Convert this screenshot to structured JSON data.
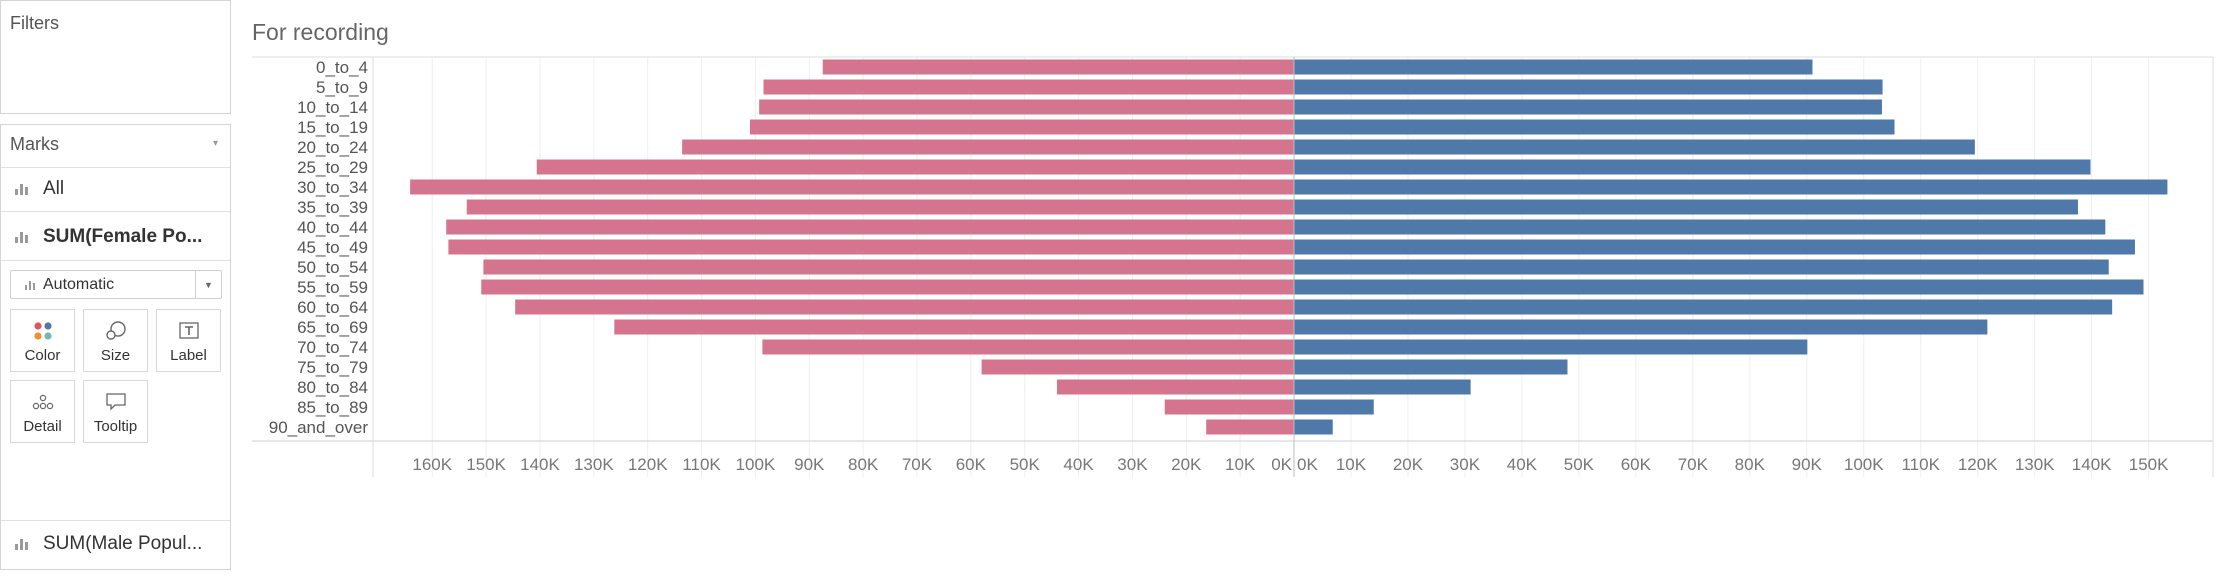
{
  "filters": {
    "title": "Filters"
  },
  "marks": {
    "title": "Marks",
    "rows": [
      {
        "label": "All"
      },
      {
        "label": "SUM(Female Po..."
      },
      {
        "label": "SUM(Male Popul..."
      }
    ],
    "mark_type": "Automatic",
    "shelves": [
      {
        "label": "Color",
        "icon": "color-dots-icon"
      },
      {
        "label": "Size",
        "icon": "size-circles-icon"
      },
      {
        "label": "Label",
        "icon": "label-text-icon"
      },
      {
        "label": "Detail",
        "icon": "detail-dots-icon"
      },
      {
        "label": "Tooltip",
        "icon": "tooltip-bubble-icon"
      }
    ]
  },
  "colors": {
    "female": "#d4748f",
    "male": "#4f79a8",
    "axis_text": "#777777",
    "category_text": "#555555"
  },
  "chart_data": {
    "type": "bar",
    "title": "For recording",
    "orientation": "horizontal",
    "categories": [
      "0_to_4",
      "5_to_9",
      "10_to_14",
      "15_to_19",
      "20_to_24",
      "25_to_29",
      "30_to_34",
      "35_to_39",
      "40_to_44",
      "45_to_49",
      "50_to_54",
      "55_to_59",
      "60_to_64",
      "65_to_69",
      "70_to_74",
      "75_to_79",
      "80_to_84",
      "85_to_89",
      "90_and_over"
    ],
    "series": [
      {
        "name": "SUM(Female Po...",
        "values": [
          87500,
          98500,
          99300,
          101000,
          113600,
          140600,
          164100,
          153600,
          157400,
          157000,
          150500,
          150900,
          144600,
          126200,
          98700,
          58000,
          44000,
          24000,
          16300
        ]
      },
      {
        "name": "SUM(Male Popul...",
        "values": [
          91000,
          103300,
          103200,
          105400,
          119500,
          139800,
          153300,
          137600,
          142400,
          147600,
          143000,
          149100,
          143600,
          121700,
          90100,
          48000,
          31000,
          14000,
          6800
        ]
      }
    ],
    "left_axis": {
      "ticks": [
        "160K",
        "150K",
        "140K",
        "130K",
        "120K",
        "110K",
        "100K",
        "90K",
        "80K",
        "70K",
        "60K",
        "50K",
        "40K",
        "30K",
        "20K",
        "10K",
        "0K"
      ],
      "range": [
        0,
        171000
      ],
      "reversed": true
    },
    "right_axis": {
      "ticks": [
        "0K",
        "10K",
        "20K",
        "30K",
        "40K",
        "50K",
        "60K",
        "70K",
        "80K",
        "90K",
        "100K",
        "110K",
        "120K",
        "130K",
        "140K",
        "150K"
      ],
      "range": [
        0,
        161300
      ]
    },
    "grid": true,
    "legend": "none"
  }
}
